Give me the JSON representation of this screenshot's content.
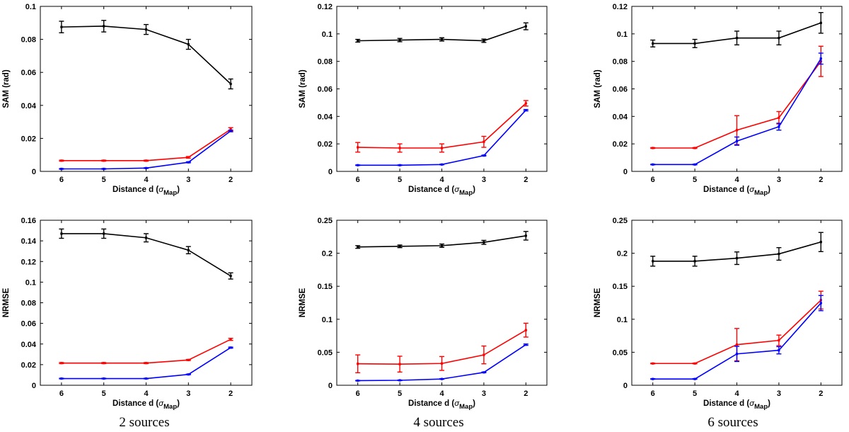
{
  "chart_data": [
    {
      "type": "line",
      "column": "2 sources",
      "title": "",
      "xlabel_main": "Distance d (",
      "xlabel_sigma": "σ",
      "xlabel_sub": "Map",
      "xlabel_close": ")",
      "ylabel": "SAM (rad)",
      "x": [
        6,
        5,
        4,
        3,
        2
      ],
      "xticks": [
        "6",
        "5",
        "4",
        "3",
        "2"
      ],
      "ylim": [
        0,
        0.1
      ],
      "yticks": [
        "0",
        "0.02",
        "0.04",
        "0.06",
        "0.08",
        "0.1"
      ],
      "series": [
        {
          "name": "black",
          "color": "#000000",
          "values": [
            0.0875,
            0.088,
            0.086,
            0.077,
            0.053
          ],
          "errors": [
            0.0035,
            0.0035,
            0.003,
            0.003,
            0.003
          ]
        },
        {
          "name": "red",
          "color": "#ff0000",
          "values": [
            0.0065,
            0.0065,
            0.0065,
            0.0085,
            0.0255
          ],
          "errors": [
            0.0003,
            0.0003,
            0.0003,
            0.0005,
            0.001
          ]
        },
        {
          "name": "blue",
          "color": "#0000ff",
          "values": [
            0.0015,
            0.0015,
            0.002,
            0.0055,
            0.0245
          ],
          "errors": [
            0.0002,
            0.0002,
            0.0002,
            0.0003,
            0.0005
          ]
        }
      ]
    },
    {
      "type": "line",
      "column": "4 sources",
      "title": "",
      "xlabel_main": "Distance d (",
      "xlabel_sigma": "σ",
      "xlabel_sub": "Map",
      "xlabel_close": ")",
      "ylabel": "SAM (rad)",
      "x": [
        6,
        5,
        4,
        3,
        2
      ],
      "xticks": [
        "6",
        "5",
        "4",
        "3",
        "2"
      ],
      "ylim": [
        0,
        0.12
      ],
      "yticks": [
        "0",
        "0.02",
        "0.04",
        "0.06",
        "0.08",
        "0.1",
        "0.12"
      ],
      "series": [
        {
          "name": "black",
          "color": "#000000",
          "values": [
            0.095,
            0.0955,
            0.096,
            0.095,
            0.1055
          ],
          "errors": [
            0.001,
            0.0012,
            0.0012,
            0.0012,
            0.0025
          ]
        },
        {
          "name": "red",
          "color": "#ff0000",
          "values": [
            0.0175,
            0.017,
            0.017,
            0.0215,
            0.0495
          ],
          "errors": [
            0.0035,
            0.003,
            0.003,
            0.004,
            0.002
          ]
        },
        {
          "name": "blue",
          "color": "#0000ff",
          "values": [
            0.0045,
            0.0045,
            0.005,
            0.0115,
            0.0445
          ],
          "errors": [
            0.0002,
            0.0002,
            0.0002,
            0.0003,
            0.0005
          ]
        }
      ]
    },
    {
      "type": "line",
      "column": "6 sources",
      "title": "",
      "xlabel_main": "Distance d (",
      "xlabel_sigma": "σ",
      "xlabel_sub": "Map",
      "xlabel_close": ")",
      "ylabel": "SAM (rad)",
      "x": [
        6,
        5,
        4,
        3,
        2
      ],
      "xticks": [
        "6",
        "5",
        "4",
        "3",
        "2"
      ],
      "ylim": [
        0,
        0.12
      ],
      "yticks": [
        "0",
        "0.02",
        "0.04",
        "0.06",
        "0.08",
        "0.1",
        "0.12"
      ],
      "series": [
        {
          "name": "black",
          "color": "#000000",
          "values": [
            0.093,
            0.093,
            0.097,
            0.097,
            0.108
          ],
          "errors": [
            0.0025,
            0.003,
            0.005,
            0.005,
            0.0075
          ]
        },
        {
          "name": "red",
          "color": "#ff0000",
          "values": [
            0.017,
            0.017,
            0.03,
            0.039,
            0.08
          ],
          "errors": [
            0.0003,
            0.0003,
            0.0105,
            0.0045,
            0.011
          ]
        },
        {
          "name": "blue",
          "color": "#0000ff",
          "values": [
            0.005,
            0.005,
            0.022,
            0.0325,
            0.082
          ],
          "errors": [
            0.0002,
            0.0002,
            0.003,
            0.0025,
            0.004
          ]
        }
      ]
    },
    {
      "type": "line",
      "column": "2 sources",
      "title": "",
      "xlabel_main": "Distance d (",
      "xlabel_sigma": "σ",
      "xlabel_sub": "Map",
      "xlabel_close": ")",
      "ylabel": "NRMSE",
      "x": [
        6,
        5,
        4,
        3,
        2
      ],
      "xticks": [
        "6",
        "5",
        "4",
        "3",
        "2"
      ],
      "ylim": [
        0,
        0.16
      ],
      "yticks": [
        "0",
        "0.02",
        "0.04",
        "0.06",
        "0.08",
        "0.1",
        "0.12",
        "0.14",
        "0.16"
      ],
      "series": [
        {
          "name": "black",
          "color": "#000000",
          "values": [
            0.147,
            0.147,
            0.143,
            0.131,
            0.106
          ],
          "errors": [
            0.0045,
            0.0045,
            0.004,
            0.0035,
            0.003
          ]
        },
        {
          "name": "red",
          "color": "#ff0000",
          "values": [
            0.0215,
            0.0215,
            0.0215,
            0.0245,
            0.0445
          ],
          "errors": [
            0.0005,
            0.0005,
            0.0005,
            0.0005,
            0.001
          ]
        },
        {
          "name": "blue",
          "color": "#0000ff",
          "values": [
            0.0065,
            0.0065,
            0.0065,
            0.0105,
            0.0365
          ],
          "errors": [
            0.0003,
            0.0003,
            0.0003,
            0.0003,
            0.0005
          ]
        }
      ]
    },
    {
      "type": "line",
      "column": "4 sources",
      "title": "",
      "xlabel_main": "Distance d (",
      "xlabel_sigma": "σ",
      "xlabel_sub": "Map",
      "xlabel_close": ")",
      "ylabel": "NRMSE",
      "x": [
        6,
        5,
        4,
        3,
        2
      ],
      "xticks": [
        "6",
        "5",
        "4",
        "3",
        "2"
      ],
      "ylim": [
        0,
        0.25
      ],
      "yticks": [
        "0",
        "0.05",
        "0.1",
        "0.15",
        "0.2",
        "0.25"
      ],
      "series": [
        {
          "name": "black",
          "color": "#000000",
          "values": [
            0.2095,
            0.2105,
            0.2115,
            0.2165,
            0.2265
          ],
          "errors": [
            0.002,
            0.002,
            0.0025,
            0.003,
            0.0065
          ]
        },
        {
          "name": "red",
          "color": "#ff0000",
          "values": [
            0.0325,
            0.032,
            0.033,
            0.046,
            0.0835
          ],
          "errors": [
            0.0135,
            0.012,
            0.0105,
            0.0135,
            0.0105
          ]
        },
        {
          "name": "blue",
          "color": "#0000ff",
          "values": [
            0.007,
            0.0075,
            0.0095,
            0.0195,
            0.0615
          ],
          "errors": [
            0.0004,
            0.0004,
            0.0004,
            0.0005,
            0.001
          ]
        }
      ]
    },
    {
      "type": "line",
      "column": "6 sources",
      "title": "",
      "xlabel_main": "Distance d (",
      "xlabel_sigma": "σ",
      "xlabel_sub": "Map",
      "xlabel_close": ")",
      "ylabel": "NRMSE",
      "x": [
        6,
        5,
        4,
        3,
        2
      ],
      "xticks": [
        "6",
        "5",
        "4",
        "3",
        "2"
      ],
      "ylim": [
        0,
        0.25
      ],
      "yticks": [
        "0",
        "0.05",
        "0.1",
        "0.15",
        "0.2",
        "0.25"
      ],
      "series": [
        {
          "name": "black",
          "color": "#000000",
          "values": [
            0.188,
            0.188,
            0.1925,
            0.199,
            0.217
          ],
          "errors": [
            0.0075,
            0.0075,
            0.0095,
            0.0095,
            0.0145
          ]
        },
        {
          "name": "red",
          "color": "#ff0000",
          "values": [
            0.033,
            0.033,
            0.0615,
            0.068,
            0.129
          ],
          "errors": [
            0.0005,
            0.0005,
            0.0245,
            0.008,
            0.0135
          ]
        },
        {
          "name": "blue",
          "color": "#0000ff",
          "values": [
            0.0095,
            0.0095,
            0.0475,
            0.053,
            0.1245
          ],
          "errors": [
            0.0004,
            0.0004,
            0.0115,
            0.0055,
            0.0115
          ]
        }
      ]
    }
  ],
  "captions": [
    "2 sources",
    "4 sources",
    "6 sources"
  ]
}
